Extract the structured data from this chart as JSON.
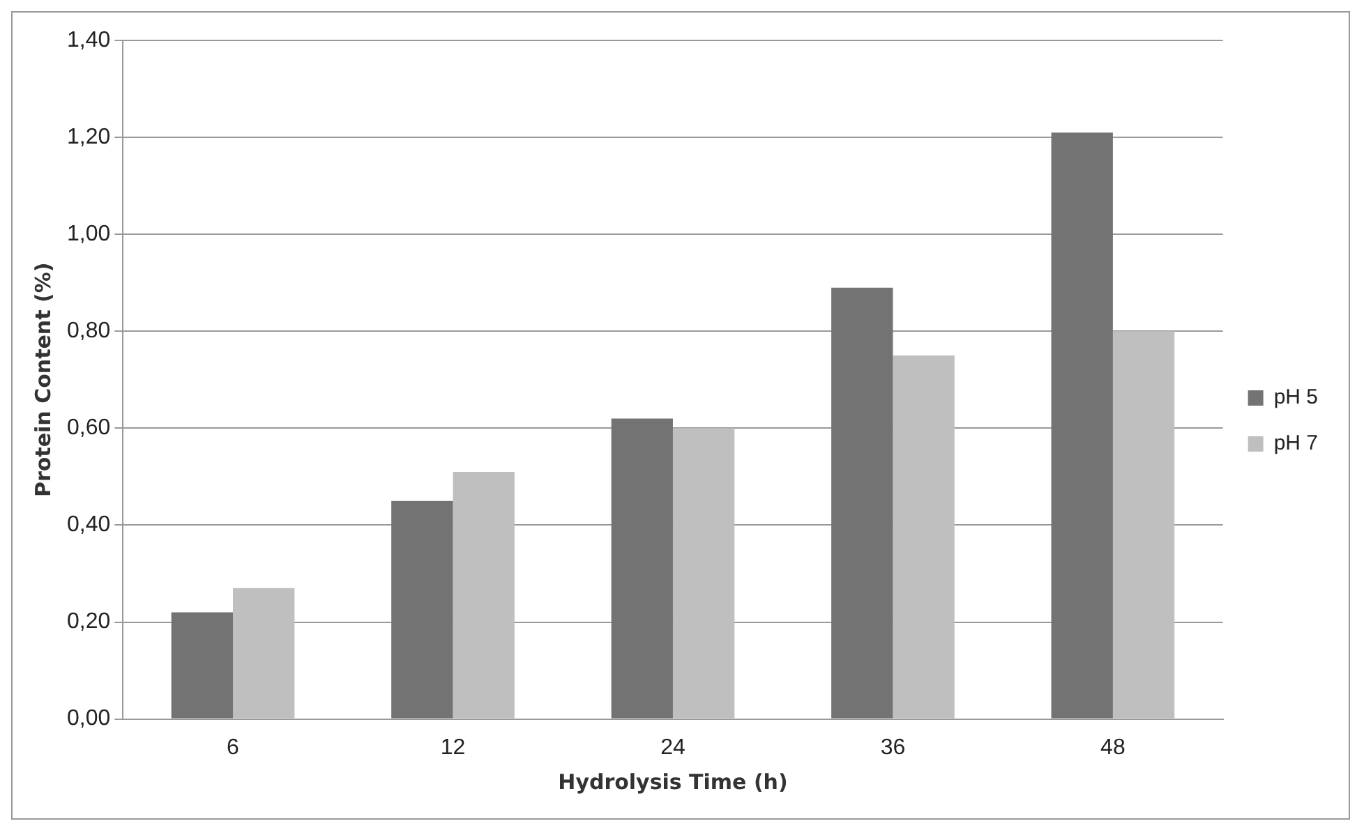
{
  "chart_data": {
    "type": "bar",
    "xlabel": "Hydrolysis Time (h)",
    "ylabel": "Protein Content (%)",
    "categories": [
      "6",
      "12",
      "24",
      "36",
      "48"
    ],
    "series": [
      {
        "name": "pH 5",
        "color": "#737373",
        "values": [
          0.22,
          0.45,
          0.62,
          0.89,
          1.21
        ]
      },
      {
        "name": "pH 7",
        "color": "#bfbfbf",
        "values": [
          0.27,
          0.51,
          0.6,
          0.75,
          0.8
        ]
      }
    ],
    "ylim": [
      0,
      1.4
    ],
    "yticks": [
      {
        "value": 0,
        "label": "0,00"
      },
      {
        "value": 0.2,
        "label": "0,20"
      },
      {
        "value": 0.4,
        "label": "0,40"
      },
      {
        "value": 0.6,
        "label": "0,60"
      },
      {
        "value": 0.8,
        "label": "0,80"
      },
      {
        "value": 1,
        "label": "1,00"
      },
      {
        "value": 1.2,
        "label": "1,20"
      },
      {
        "value": 1.4,
        "label": "1,40"
      }
    ],
    "grid": "y",
    "legend": "right"
  }
}
